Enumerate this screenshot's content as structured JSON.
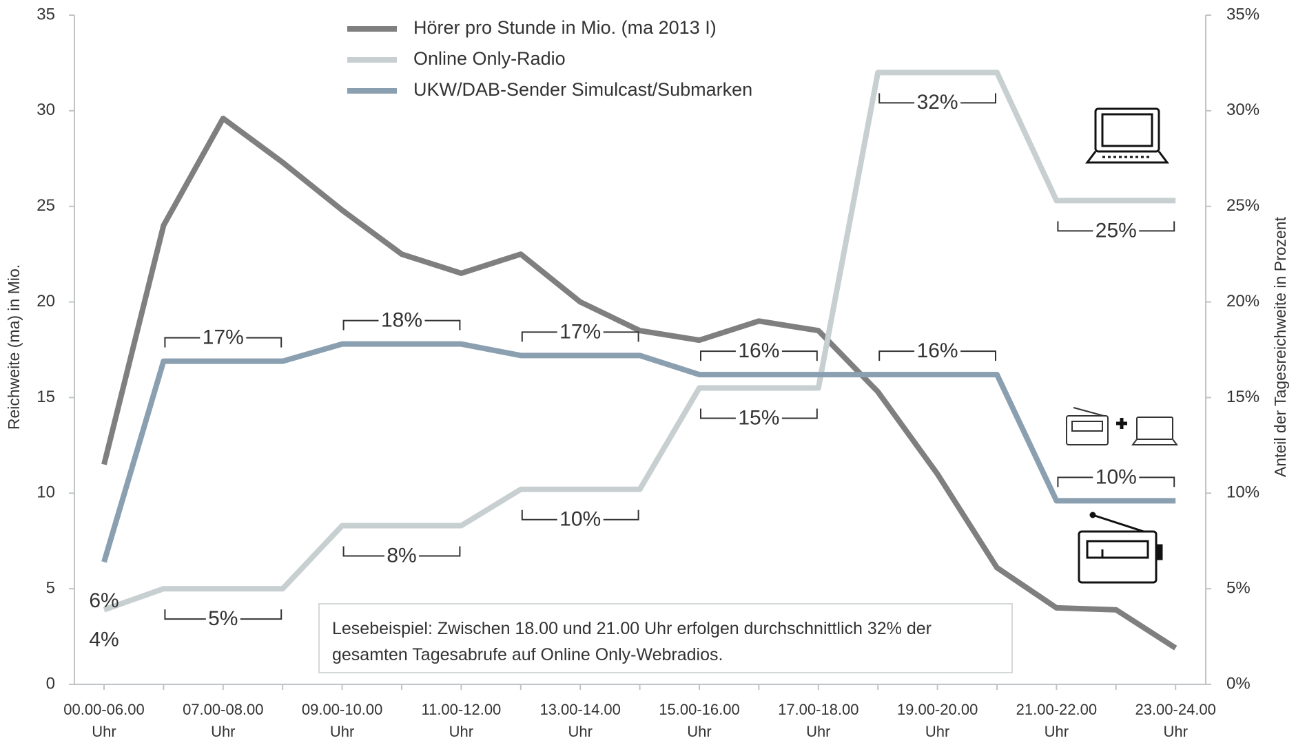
{
  "chart_data": {
    "type": "line",
    "y_label": "Reichweite (ma) in Mio.",
    "y2_label": "Anteil der Tagesreichweite in Prozent",
    "categories": [
      "00.00-06.00 Uhr",
      null,
      "07.00-08.00 Uhr",
      null,
      "09.00-10.00 Uhr",
      null,
      "11.00-12.00 Uhr",
      null,
      "13.00-14.00 Uhr",
      null,
      "15.00-16.00 Uhr",
      null,
      "17.00-18.00 Uhr",
      null,
      "19.00-20.00 Uhr",
      null,
      "21.00-22.00 Uhr",
      null,
      "23.00-24.00 Uhr"
    ],
    "series": [
      {
        "name": "Hörer pro Stunde in Mio. (ma 2013 I)",
        "color": "#7f7f7f",
        "axis": "y",
        "values": [
          11.5,
          24,
          29.6,
          27.3,
          24.8,
          22.5,
          21.5,
          22.5,
          20,
          18.5,
          18,
          19,
          18.5,
          15.3,
          11,
          6.1,
          4,
          3.9,
          1.9
        ]
      },
      {
        "name": "Online Only-Radio",
        "color": "#c7cfd1",
        "axis": "y2",
        "values": [
          3.9,
          5,
          5,
          5,
          8.3,
          8.3,
          8.3,
          10.2,
          10.2,
          10.2,
          15.5,
          15.5,
          15.5,
          32,
          32,
          32,
          25.3,
          25.3,
          25.3
        ],
        "value_labels": [
          "4%",
          null,
          "5%",
          null,
          null,
          "8%",
          null,
          null,
          "10%",
          null,
          null,
          "15%",
          null,
          null,
          "32%",
          null,
          null,
          "25%",
          null
        ]
      },
      {
        "name": "UKW/DAB-Sender Simulcast/Submarken",
        "color": "#8a9fb0",
        "axis": "y2",
        "values": [
          6.4,
          16.9,
          16.9,
          16.9,
          17.8,
          17.8,
          17.8,
          17.2,
          17.2,
          17.2,
          16.2,
          16.2,
          16.2,
          16.2,
          16.2,
          16.2,
          9.6,
          9.6,
          9.6
        ],
        "value_labels": [
          "6%",
          null,
          "17%",
          null,
          null,
          "18%",
          null,
          null,
          "17%",
          null,
          null,
          "16%",
          null,
          null,
          "16%",
          null,
          null,
          "10%",
          null
        ]
      }
    ],
    "ylim": [
      0,
      35
    ],
    "yticks": [
      0,
      5,
      10,
      15,
      20,
      25,
      30,
      35
    ],
    "y2lim": [
      0,
      35
    ],
    "y2ticks": [
      {
        "value": 0,
        "label": "0%"
      },
      {
        "value": 5,
        "label": "5%"
      },
      {
        "value": 10,
        "label": "10%"
      },
      {
        "value": 15,
        "label": "15%"
      },
      {
        "value": 20,
        "label": "20%"
      },
      {
        "value": 25,
        "label": "25%"
      },
      {
        "value": 30,
        "label": "30%"
      },
      {
        "value": 35,
        "label": "35%"
      }
    ],
    "legend": "top",
    "annotation": "Lesebeispiel: Zwischen 18.00 und 21.00 Uhr erfolgen durchschnittlich 32% der gesamten Tagesabrufe auf Online Only-Webradios."
  }
}
